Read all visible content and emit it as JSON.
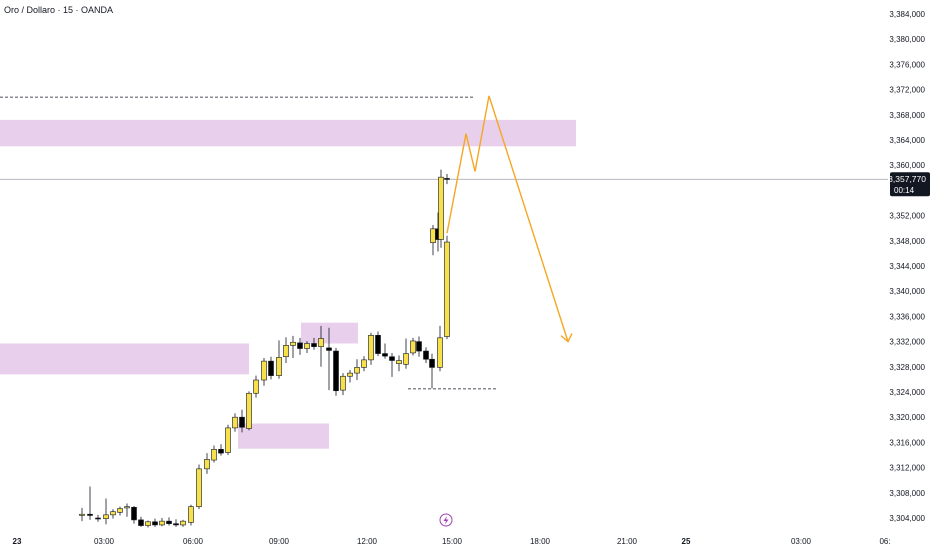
{
  "header": {
    "title": "Oro / Dollaro · 15 · OANDA"
  },
  "colors": {
    "bull_body": "#f7e04a",
    "bear_body": "#000000",
    "wick": "#131722",
    "zone": "#e8d0ec",
    "projection": "#f5a623",
    "price_line": "#9ea1ad",
    "label_bg": "#131722",
    "label_text": "#ffffff",
    "event_icon": "#a040b8"
  },
  "price_axis": {
    "ticks": [
      "3,384,000",
      "3,380,000",
      "3,376,000",
      "3,372,000",
      "3,368,000",
      "3,364,000",
      "3,360,000",
      "3,352,000",
      "3,348,000",
      "3,344,000",
      "3,340,000",
      "3,336,000",
      "3,332,000",
      "3,328,000",
      "3,324,000",
      "3,320,000",
      "3,316,000",
      "3,312,000",
      "3,308,000",
      "3,304,000"
    ],
    "current_price": "3,357,770",
    "countdown": "00:14"
  },
  "time_axis": {
    "labels": [
      {
        "text": "23",
        "bold": true
      },
      {
        "text": "03:00"
      },
      {
        "text": "06:00"
      },
      {
        "text": "09:00"
      },
      {
        "text": "12:00"
      },
      {
        "text": "15:00"
      },
      {
        "text": "18:00"
      },
      {
        "text": "21:00"
      },
      {
        "text": "25",
        "bold": true
      },
      {
        "text": "03:00"
      },
      {
        "text": "06:"
      }
    ]
  },
  "event_icon": "lightning-icon",
  "chart_data": {
    "type": "candlestick",
    "title": "Oro / Dollaro · 15 · OANDA",
    "ylim": [
      3302.5,
      3386.0
    ],
    "candles": [
      {
        "o": 3304.4,
        "h": 3305.6,
        "l": 3303.5,
        "c": 3304.6
      },
      {
        "o": 3304.6,
        "h": 3309.0,
        "l": 3303.7,
        "c": 3304.4
      },
      {
        "o": 3304.0,
        "h": 3304.5,
        "l": 3303.4,
        "c": 3303.9
      },
      {
        "o": 3303.9,
        "h": 3307.1,
        "l": 3303.0,
        "c": 3304.5
      },
      {
        "o": 3304.5,
        "h": 3305.4,
        "l": 3303.9,
        "c": 3305.0
      },
      {
        "o": 3304.9,
        "h": 3305.8,
        "l": 3304.4,
        "c": 3305.5
      },
      {
        "o": 3305.6,
        "h": 3306.3,
        "l": 3304.2,
        "c": 3305.8
      },
      {
        "o": 3305.7,
        "h": 3305.9,
        "l": 3303.1,
        "c": 3303.7
      },
      {
        "o": 3303.7,
        "h": 3304.2,
        "l": 3302.6,
        "c": 3302.8
      },
      {
        "o": 3302.8,
        "h": 3303.6,
        "l": 3302.5,
        "c": 3303.4
      },
      {
        "o": 3303.4,
        "h": 3303.9,
        "l": 3302.6,
        "c": 3302.9
      },
      {
        "o": 3302.9,
        "h": 3304.0,
        "l": 3302.7,
        "c": 3303.5
      },
      {
        "o": 3303.5,
        "h": 3304.1,
        "l": 3302.8,
        "c": 3303.1
      },
      {
        "o": 3303.1,
        "h": 3303.8,
        "l": 3302.6,
        "c": 3302.9
      },
      {
        "o": 3302.9,
        "h": 3303.7,
        "l": 3302.6,
        "c": 3303.5
      },
      {
        "o": 3303.3,
        "h": 3306.1,
        "l": 3302.8,
        "c": 3305.8
      },
      {
        "o": 3305.8,
        "h": 3312.5,
        "l": 3305.4,
        "c": 3311.8
      },
      {
        "o": 3311.8,
        "h": 3314.3,
        "l": 3311.0,
        "c": 3313.3
      },
      {
        "o": 3313.2,
        "h": 3315.5,
        "l": 3312.8,
        "c": 3314.9
      },
      {
        "o": 3314.9,
        "h": 3315.7,
        "l": 3313.9,
        "c": 3314.3
      },
      {
        "o": 3314.4,
        "h": 3318.8,
        "l": 3314.0,
        "c": 3318.3
      },
      {
        "o": 3318.3,
        "h": 3320.6,
        "l": 3317.7,
        "c": 3320.0
      },
      {
        "o": 3320.0,
        "h": 3321.2,
        "l": 3317.6,
        "c": 3318.4
      },
      {
        "o": 3318.2,
        "h": 3324.1,
        "l": 3317.9,
        "c": 3323.8
      },
      {
        "o": 3323.8,
        "h": 3326.6,
        "l": 3323.1,
        "c": 3325.9
      },
      {
        "o": 3325.9,
        "h": 3329.4,
        "l": 3325.0,
        "c": 3328.9
      },
      {
        "o": 3328.9,
        "h": 3329.6,
        "l": 3326.0,
        "c": 3326.6
      },
      {
        "o": 3326.6,
        "h": 3332.2,
        "l": 3326.1,
        "c": 3329.5
      },
      {
        "o": 3329.6,
        "h": 3332.7,
        "l": 3328.6,
        "c": 3331.4
      },
      {
        "o": 3331.4,
        "h": 3332.9,
        "l": 3329.4,
        "c": 3331.9
      },
      {
        "o": 3331.8,
        "h": 3332.6,
        "l": 3329.9,
        "c": 3330.9
      },
      {
        "o": 3330.9,
        "h": 3332.1,
        "l": 3330.2,
        "c": 3331.7
      },
      {
        "o": 3331.7,
        "h": 3332.6,
        "l": 3330.7,
        "c": 3331.2
      },
      {
        "o": 3331.2,
        "h": 3334.5,
        "l": 3328.0,
        "c": 3332.5
      },
      {
        "o": 3331.0,
        "h": 3334.2,
        "l": 3324.3,
        "c": 3330.6
      },
      {
        "o": 3330.5,
        "h": 3331.0,
        "l": 3323.4,
        "c": 3324.2
      },
      {
        "o": 3324.3,
        "h": 3327.0,
        "l": 3323.5,
        "c": 3326.5
      },
      {
        "o": 3326.5,
        "h": 3327.5,
        "l": 3325.5,
        "c": 3327.0
      },
      {
        "o": 3327.0,
        "h": 3329.2,
        "l": 3325.9,
        "c": 3327.9
      },
      {
        "o": 3327.9,
        "h": 3329.7,
        "l": 3327.3,
        "c": 3329.1
      },
      {
        "o": 3329.1,
        "h": 3333.4,
        "l": 3328.3,
        "c": 3333.0
      },
      {
        "o": 3333.0,
        "h": 3333.6,
        "l": 3329.7,
        "c": 3330.1
      },
      {
        "o": 3330.1,
        "h": 3331.7,
        "l": 3329.3,
        "c": 3329.7
      },
      {
        "o": 3329.6,
        "h": 3330.2,
        "l": 3326.4,
        "c": 3329.0
      },
      {
        "o": 3328.5,
        "h": 3329.8,
        "l": 3327.3,
        "c": 3329.0
      },
      {
        "o": 3328.4,
        "h": 3332.5,
        "l": 3327.7,
        "c": 3330.1
      },
      {
        "o": 3330.2,
        "h": 3332.6,
        "l": 3329.8,
        "c": 3332.1
      },
      {
        "o": 3332.0,
        "h": 3332.8,
        "l": 3329.6,
        "c": 3330.5
      },
      {
        "o": 3330.5,
        "h": 3331.1,
        "l": 3328.6,
        "c": 3329.2
      },
      {
        "o": 3329.2,
        "h": 3330.1,
        "l": 3324.6,
        "c": 3327.9
      },
      {
        "o": 3327.9,
        "h": 3334.5,
        "l": 3327.3,
        "c": 3332.6
      },
      {
        "o": 3332.8,
        "h": 3348.8,
        "l": 3332.4,
        "c": 3347.8
      },
      {
        "o": 3347.7,
        "h": 3350.5,
        "l": 3345.7,
        "c": 3349.9
      },
      {
        "o": 3349.9,
        "h": 3352.5,
        "l": 3346.3,
        "c": 3348.2
      },
      {
        "o": 3348.2,
        "h": 3359.3,
        "l": 3346.9,
        "c": 3358.1
      },
      {
        "o": 3357.9,
        "h": 3358.6,
        "l": 3357.0,
        "c": 3357.77
      }
    ],
    "x_positions": [
      82,
      90,
      98,
      106,
      113,
      120,
      127,
      134,
      141,
      148,
      155,
      162,
      169,
      176,
      183,
      191,
      199,
      207,
      214,
      221,
      228,
      235,
      242,
      249,
      256,
      264,
      271,
      279,
      286,
      293,
      300,
      307,
      314,
      321,
      329,
      336,
      343,
      350,
      357,
      364,
      371,
      378,
      385,
      392,
      399,
      406,
      413,
      419,
      426,
      432,
      440,
      447,
      433,
      438,
      441,
      447
    ],
    "zones": [
      {
        "from": 3363.0,
        "to": 3367.2
      },
      {
        "from": 3326.8,
        "to": 3331.7
      },
      {
        "from": 3331.7,
        "to": 3335.0
      },
      {
        "from": 3315.0,
        "to": 3319.0
      }
    ],
    "dashed_levels": [
      3370.8,
      3324.5
    ],
    "current_price": 3357.77,
    "projection": [
      3349.2,
      3365.0,
      3359.0,
      3371.0,
      3332.0
    ]
  }
}
